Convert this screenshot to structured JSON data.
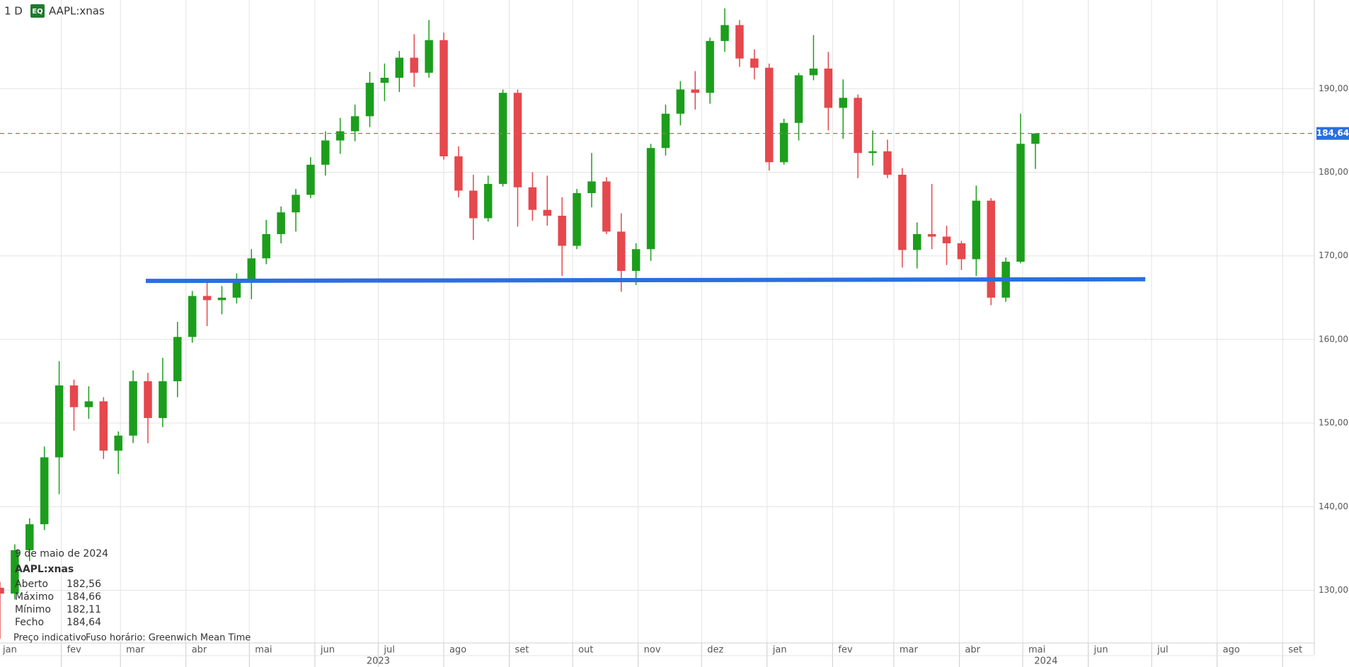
{
  "header": {
    "interval": "1 D",
    "badge": "EQ",
    "symbol": "AAPL:xnas"
  },
  "chart_data": {
    "type": "candlestick",
    "x": [
      2,
      9,
      16,
      23,
      30,
      37,
      44,
      51,
      58,
      65,
      72,
      79,
      86,
      93,
      100,
      107,
      114,
      121,
      128,
      135,
      142,
      149,
      156,
      163,
      170,
      177,
      184,
      191,
      198,
      205,
      212,
      219,
      226,
      233,
      240,
      247,
      254,
      261,
      268,
      275,
      282,
      289,
      296,
      303,
      310,
      317,
      324,
      331,
      338,
      345,
      352,
      359,
      366,
      373,
      380,
      387,
      394,
      401,
      408,
      415,
      422,
      429,
      436,
      443,
      450,
      457,
      464,
      471,
      478,
      485,
      492
    ],
    "open": [
      130.3,
      129.6,
      134.8,
      137.9,
      145.9,
      154.5,
      151.9,
      152.6,
      146.7,
      148.5,
      155.0,
      150.6,
      155.0,
      160.3,
      165.2,
      164.7,
      165.0,
      167.0,
      169.7,
      172.6,
      175.2,
      177.3,
      180.9,
      183.8,
      184.9,
      186.7,
      190.7,
      191.3,
      193.7,
      191.9,
      195.8,
      181.9,
      177.8,
      174.5,
      178.6,
      189.5,
      178.2,
      175.5,
      174.8,
      171.2,
      177.5,
      178.9,
      172.9,
      168.2,
      170.8,
      182.9,
      187.0,
      189.9,
      189.5,
      195.7,
      197.6,
      193.6,
      192.5,
      181.2,
      185.9,
      191.6,
      192.4,
      187.7,
      188.9,
      182.3,
      182.5,
      179.7,
      170.7,
      172.6,
      172.3,
      171.5,
      169.6,
      176.6,
      165.0,
      169.3,
      183.4
    ],
    "high": [
      131.0,
      135.5,
      138.6,
      147.2,
      157.4,
      155.2,
      154.4,
      153.1,
      149.0,
      156.3,
      156.0,
      157.8,
      162.1,
      165.8,
      166.8,
      166.4,
      167.9,
      170.8,
      174.3,
      175.9,
      178.0,
      181.8,
      184.9,
      186.5,
      188.1,
      192.0,
      193.0,
      194.5,
      196.5,
      198.2,
      196.7,
      183.1,
      179.7,
      179.6,
      189.9,
      189.9,
      180.0,
      179.6,
      177.0,
      178.0,
      182.3,
      179.4,
      175.1,
      171.5,
      183.4,
      188.1,
      190.9,
      192.1,
      196.1,
      199.6,
      198.2,
      194.7,
      193.0,
      186.4,
      191.9,
      196.4,
      194.4,
      191.1,
      189.3,
      185.0,
      183.9,
      180.5,
      174.0,
      178.6,
      173.6,
      171.8,
      178.4,
      176.9,
      169.8,
      187.0,
      184.66
    ],
    "low": [
      124.2,
      128.9,
      133.5,
      137.2,
      141.5,
      149.1,
      150.5,
      145.7,
      143.9,
      147.6,
      147.6,
      149.5,
      153.1,
      159.6,
      161.6,
      163.0,
      164.3,
      164.8,
      169.0,
      171.5,
      172.9,
      176.9,
      179.6,
      182.2,
      183.7,
      185.4,
      188.5,
      189.6,
      190.2,
      191.3,
      181.5,
      177.0,
      171.9,
      174.1,
      178.3,
      173.5,
      174.2,
      173.6,
      167.6,
      170.8,
      175.8,
      172.6,
      165.7,
      166.5,
      169.4,
      182.0,
      185.6,
      187.5,
      188.2,
      194.4,
      192.6,
      191.1,
      180.2,
      180.9,
      183.8,
      191.0,
      185.0,
      184.0,
      179.3,
      180.8,
      179.3,
      168.6,
      168.5,
      170.8,
      168.9,
      168.3,
      167.6,
      164.1,
      164.5,
      169.1,
      180.4
    ],
    "close": [
      129.6,
      134.8,
      137.9,
      145.9,
      154.5,
      151.9,
      152.6,
      146.7,
      148.5,
      155.0,
      150.6,
      155.0,
      160.3,
      165.2,
      164.7,
      165.0,
      167.0,
      169.7,
      172.6,
      175.2,
      177.3,
      180.9,
      183.8,
      184.9,
      186.7,
      190.7,
      191.3,
      193.7,
      191.9,
      195.8,
      181.9,
      177.8,
      174.5,
      178.6,
      189.5,
      178.2,
      175.5,
      174.8,
      171.2,
      177.5,
      178.9,
      172.9,
      168.2,
      170.8,
      182.9,
      187.0,
      189.9,
      189.5,
      195.7,
      197.6,
      193.6,
      192.5,
      181.2,
      185.9,
      191.6,
      192.4,
      187.7,
      188.9,
      182.3,
      182.5,
      179.7,
      170.7,
      172.6,
      172.3,
      171.5,
      169.6,
      176.6,
      165.0,
      169.3,
      183.4,
      184.64
    ],
    "up_color": "#1c9e1c",
    "down_color": "#e5484d",
    "xlim": [
      2,
      624
    ],
    "xticks": [
      {
        "value": 0,
        "label": "jan"
      },
      {
        "value": 31,
        "label": "fev"
      },
      {
        "value": 59,
        "label": "mar"
      },
      {
        "value": 90,
        "label": "abr"
      },
      {
        "value": 120,
        "label": "mai"
      },
      {
        "value": 151,
        "label": "jun"
      },
      {
        "value": 181,
        "label": "jul"
      },
      {
        "value": 212,
        "label": "ago"
      },
      {
        "value": 243,
        "label": "set"
      },
      {
        "value": 273,
        "label": "out"
      },
      {
        "value": 304,
        "label": "nov"
      },
      {
        "value": 334,
        "label": "dez"
      },
      {
        "value": 365,
        "label": "jan"
      },
      {
        "value": 396,
        "label": "fev"
      },
      {
        "value": 425,
        "label": "mar"
      },
      {
        "value": 456,
        "label": "abr"
      },
      {
        "value": 486,
        "label": "mai"
      },
      {
        "value": 517,
        "label": "jun"
      },
      {
        "value": 547,
        "label": "jul"
      },
      {
        "value": 578,
        "label": "ago"
      },
      {
        "value": 609,
        "label": "set"
      }
    ],
    "year_ticks": [
      {
        "value": 181,
        "label": "2023"
      },
      {
        "value": 497,
        "label": "2024"
      }
    ],
    "ylim": [
      123.7,
      200.6
    ],
    "yticks": [
      {
        "value": 130,
        "label": "130,00"
      },
      {
        "value": 140,
        "label": "140,00"
      },
      {
        "value": 150,
        "label": "150,00"
      },
      {
        "value": 160,
        "label": "160,00"
      },
      {
        "value": 170,
        "label": "170,00"
      },
      {
        "value": 180,
        "label": "180,00"
      },
      {
        "value": 190,
        "label": "190,00"
      }
    ],
    "grid": true,
    "trendline": {
      "x": [
        71,
        544
      ],
      "values": [
        167.0,
        167.2
      ],
      "color": "#2a6fe0"
    },
    "last_price": {
      "value": 184.64,
      "label": "184,64",
      "color": "#e0555a",
      "box_color": "#2a6fe0"
    }
  },
  "info": {
    "date": "9 de maio de 2024",
    "symbol": "AAPL:xnas",
    "rows": [
      [
        "Aberto",
        "182,56"
      ],
      [
        "Máximo",
        "184,66"
      ],
      [
        "Mínimo",
        "182,11"
      ],
      [
        "Fecho",
        "184,64"
      ]
    ],
    "notes": [
      "Preço indicativo",
      "Fuso horário: Greenwich Mean Time"
    ]
  }
}
